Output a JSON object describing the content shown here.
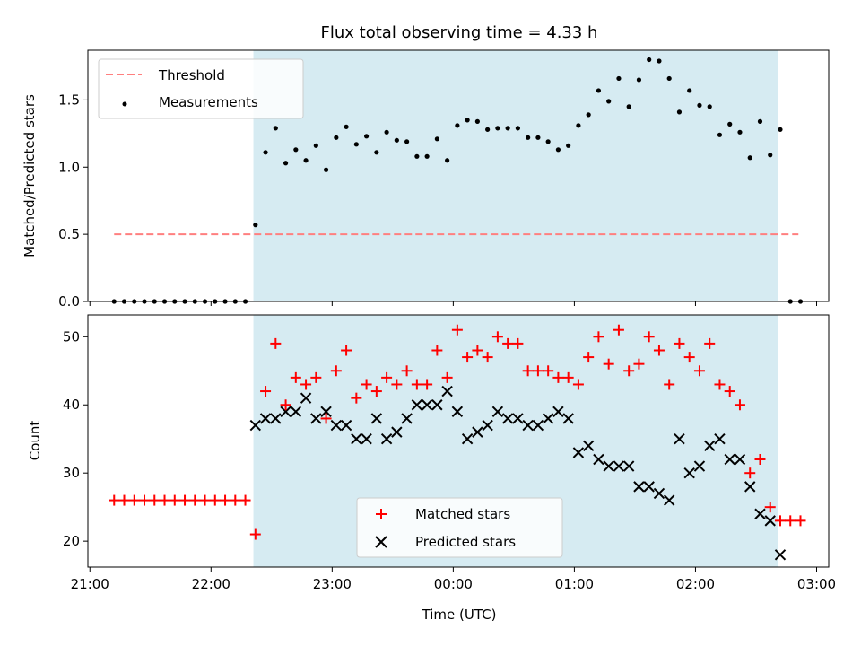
{
  "title": "Flux total observing time = 4.33 h",
  "colors": {
    "threshold": "#ff7f7f",
    "measurement": "#000000",
    "matched": "#ff0000",
    "predicted": "#000000",
    "shade": "#add8e6",
    "legend_bg": "#ffffff"
  },
  "chart_data": [
    {
      "type": "scatter",
      "ylabel": "Matched/Predicted stars",
      "xlim": [
        "20:59",
        "03:06"
      ],
      "ylim": [
        0,
        1.87
      ],
      "yticks": [
        "0.0",
        "0.5",
        "1.0",
        "1.5"
      ],
      "shaded_span": [
        "22:21",
        "02:41"
      ],
      "legend": {
        "location": "upper left",
        "items": [
          "Threshold",
          "Measurements"
        ]
      },
      "series": [
        {
          "name": "Threshold",
          "style": "dashed-line",
          "x": [
            "21:12",
            "02:51"
          ],
          "y": [
            0.5,
            0.5
          ]
        },
        {
          "name": "Measurements",
          "style": "dot",
          "x": [
            "21:12",
            "21:17",
            "21:22",
            "21:27",
            "21:32",
            "21:37",
            "21:42",
            "21:47",
            "21:52",
            "21:57",
            "22:02",
            "22:07",
            "22:12",
            "22:17",
            "22:22",
            "22:27",
            "22:32",
            "22:37",
            "22:42",
            "22:47",
            "22:52",
            "22:57",
            "23:02",
            "23:07",
            "23:12",
            "23:17",
            "23:22",
            "23:27",
            "23:32",
            "23:37",
            "23:42",
            "23:47",
            "23:52",
            "23:57",
            "00:02",
            "00:07",
            "00:12",
            "00:17",
            "00:22",
            "00:27",
            "00:32",
            "00:37",
            "00:42",
            "00:47",
            "00:52",
            "00:57",
            "01:02",
            "01:07",
            "01:12",
            "01:17",
            "01:22",
            "01:27",
            "01:32",
            "01:37",
            "01:42",
            "01:47",
            "01:52",
            "01:57",
            "02:02",
            "02:07",
            "02:12",
            "02:17",
            "02:22",
            "02:27",
            "02:32",
            "02:37",
            "02:42",
            "02:47",
            "02:52"
          ],
          "y": [
            0,
            0,
            0,
            0,
            0,
            0,
            0,
            0,
            0,
            0,
            0,
            0,
            0,
            0,
            0.57,
            1.11,
            1.29,
            1.03,
            1.13,
            1.05,
            1.16,
            0.98,
            1.22,
            1.3,
            1.17,
            1.23,
            1.11,
            1.26,
            1.2,
            1.19,
            1.08,
            1.08,
            1.21,
            1.05,
            1.31,
            1.35,
            1.34,
            1.28,
            1.29,
            1.29,
            1.29,
            1.22,
            1.22,
            1.19,
            1.13,
            1.16,
            1.31,
            1.39,
            1.57,
            1.49,
            1.66,
            1.45,
            1.65,
            1.8,
            1.79,
            1.66,
            1.41,
            1.57,
            1.46,
            1.45,
            1.24,
            1.32,
            1.26,
            1.07,
            1.34,
            1.09,
            1.28,
            0,
            0
          ]
        }
      ]
    },
    {
      "type": "scatter",
      "xlabel": "Time (UTC)",
      "ylabel": "Count",
      "xlim": [
        "20:59",
        "03:06"
      ],
      "ylim": [
        16.2,
        53.2
      ],
      "yticks": [
        20,
        30,
        40,
        50
      ],
      "xticks": [
        "21:00",
        "22:00",
        "23:00",
        "00:00",
        "01:00",
        "02:00",
        "03:00"
      ],
      "shaded_span": [
        "22:21",
        "02:41"
      ],
      "legend": {
        "location": "lower center",
        "items": [
          "Matched stars",
          "Predicted stars"
        ]
      },
      "series": [
        {
          "name": "Matched stars",
          "marker": "plus",
          "x": [
            "21:12",
            "21:17",
            "21:22",
            "21:27",
            "21:32",
            "21:37",
            "21:42",
            "21:47",
            "21:52",
            "21:57",
            "22:02",
            "22:07",
            "22:12",
            "22:17",
            "22:22",
            "22:27",
            "22:32",
            "22:37",
            "22:42",
            "22:47",
            "22:52",
            "22:57",
            "23:02",
            "23:07",
            "23:12",
            "23:17",
            "23:22",
            "23:27",
            "23:32",
            "23:37",
            "23:42",
            "23:47",
            "23:52",
            "23:57",
            "00:02",
            "00:07",
            "00:12",
            "00:17",
            "00:22",
            "00:27",
            "00:32",
            "00:37",
            "00:42",
            "00:47",
            "00:52",
            "00:57",
            "01:02",
            "01:07",
            "01:12",
            "01:17",
            "01:22",
            "01:27",
            "01:32",
            "01:37",
            "01:42",
            "01:47",
            "01:52",
            "01:57",
            "02:02",
            "02:07",
            "02:12",
            "02:17",
            "02:22",
            "02:27",
            "02:32",
            "02:37",
            "02:42",
            "02:47",
            "02:52"
          ],
          "y": [
            26,
            26,
            26,
            26,
            26,
            26,
            26,
            26,
            26,
            26,
            26,
            26,
            26,
            26,
            21,
            42,
            49,
            40,
            44,
            43,
            44,
            38,
            45,
            48,
            41,
            43,
            42,
            44,
            43,
            45,
            43,
            43,
            48,
            44,
            51,
            47,
            48,
            47,
            50,
            49,
            49,
            45,
            45,
            45,
            44,
            44,
            43,
            47,
            50,
            46,
            51,
            45,
            46,
            50,
            48,
            43,
            49,
            47,
            45,
            49,
            43,
            42,
            40,
            30,
            32,
            25,
            23,
            23,
            23
          ]
        },
        {
          "name": "Predicted stars",
          "marker": "x",
          "x": [
            "22:22",
            "22:27",
            "22:32",
            "22:37",
            "22:42",
            "22:47",
            "22:52",
            "22:57",
            "23:02",
            "23:07",
            "23:12",
            "23:17",
            "23:22",
            "23:27",
            "23:32",
            "23:37",
            "23:42",
            "23:47",
            "23:52",
            "23:57",
            "00:02",
            "00:07",
            "00:12",
            "00:17",
            "00:22",
            "00:27",
            "00:32",
            "00:37",
            "00:42",
            "00:47",
            "00:52",
            "00:57",
            "01:02",
            "01:07",
            "01:12",
            "01:17",
            "01:22",
            "01:27",
            "01:32",
            "01:37",
            "01:42",
            "01:47",
            "01:52",
            "01:57",
            "02:02",
            "02:07",
            "02:12",
            "02:17",
            "02:22",
            "02:27",
            "02:32",
            "02:37",
            "02:42"
          ],
          "y": [
            37,
            38,
            38,
            39,
            39,
            41,
            38,
            39,
            37,
            37,
            35,
            35,
            38,
            35,
            36,
            38,
            40,
            40,
            40,
            42,
            39,
            35,
            36,
            37,
            39,
            38,
            38,
            37,
            37,
            38,
            39,
            38,
            33,
            34,
            32,
            31,
            31,
            31,
            28,
            28,
            27,
            26,
            35,
            30,
            31,
            34,
            35,
            32,
            32,
            28,
            24,
            23,
            18
          ]
        }
      ]
    }
  ]
}
